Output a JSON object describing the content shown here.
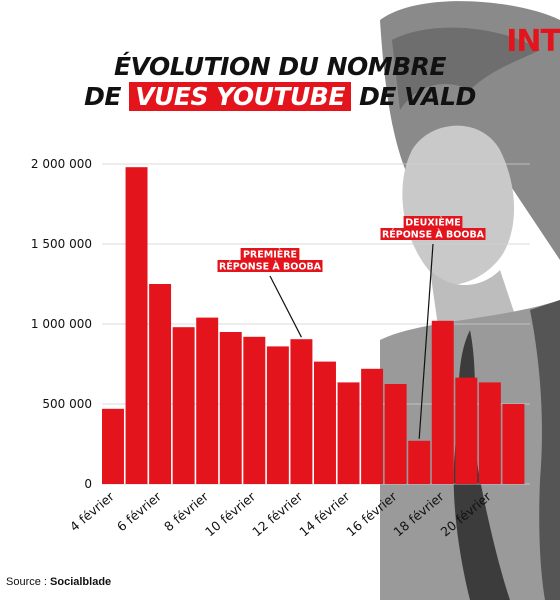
{
  "logo": {
    "text": "INT"
  },
  "title": {
    "line1": "ÉVOLUTION DU NOMBRE",
    "line2_pre": "DE",
    "line2_highlight": "VUES YOUTUBE",
    "line2_post": "DE VALD"
  },
  "source": {
    "label": "Source :",
    "name": "Socialblade"
  },
  "colors": {
    "accent": "#e3141c",
    "text": "#111111",
    "grid": "#cfcfcf"
  },
  "chart_data": {
    "type": "bar",
    "title": "ÉVOLUTION DU NOMBRE DE VUES YOUTUBE DE VALD",
    "xlabel": "",
    "ylabel": "",
    "ylim": [
      0,
      2000000
    ],
    "yticks": [
      0,
      500000,
      1000000,
      1500000,
      2000000
    ],
    "ytick_labels": [
      "0",
      "500 000",
      "1 000 000",
      "1 500 000",
      "2 000 000"
    ],
    "grid": true,
    "categories": [
      "4 février",
      "5 février",
      "6 février",
      "7 février",
      "8 février",
      "9 février",
      "10 février",
      "11 février",
      "12 février",
      "13 février",
      "14 février",
      "15 février",
      "16 février",
      "17 février",
      "18 février",
      "19 février",
      "20 février",
      "21 février"
    ],
    "tick_labels": [
      "4 février",
      "",
      "6 février",
      "",
      "8 février",
      "",
      "10 février",
      "",
      "12 février",
      "",
      "14 février",
      "",
      "16 février",
      "",
      "18 février",
      "",
      "20 février",
      ""
    ],
    "values": [
      470000,
      1980000,
      1250000,
      980000,
      1040000,
      950000,
      920000,
      860000,
      905000,
      765000,
      635000,
      720000,
      625000,
      270000,
      1020000,
      665000,
      635000,
      500000
    ],
    "annotations": [
      {
        "lines": [
          "PREMIÈRE",
          "RÉPONSE À BOOBA"
        ],
        "category_index": 8
      },
      {
        "lines": [
          "DEUXIÈME",
          "RÉPONSE À BOOBA"
        ],
        "category_index": 13
      }
    ]
  }
}
